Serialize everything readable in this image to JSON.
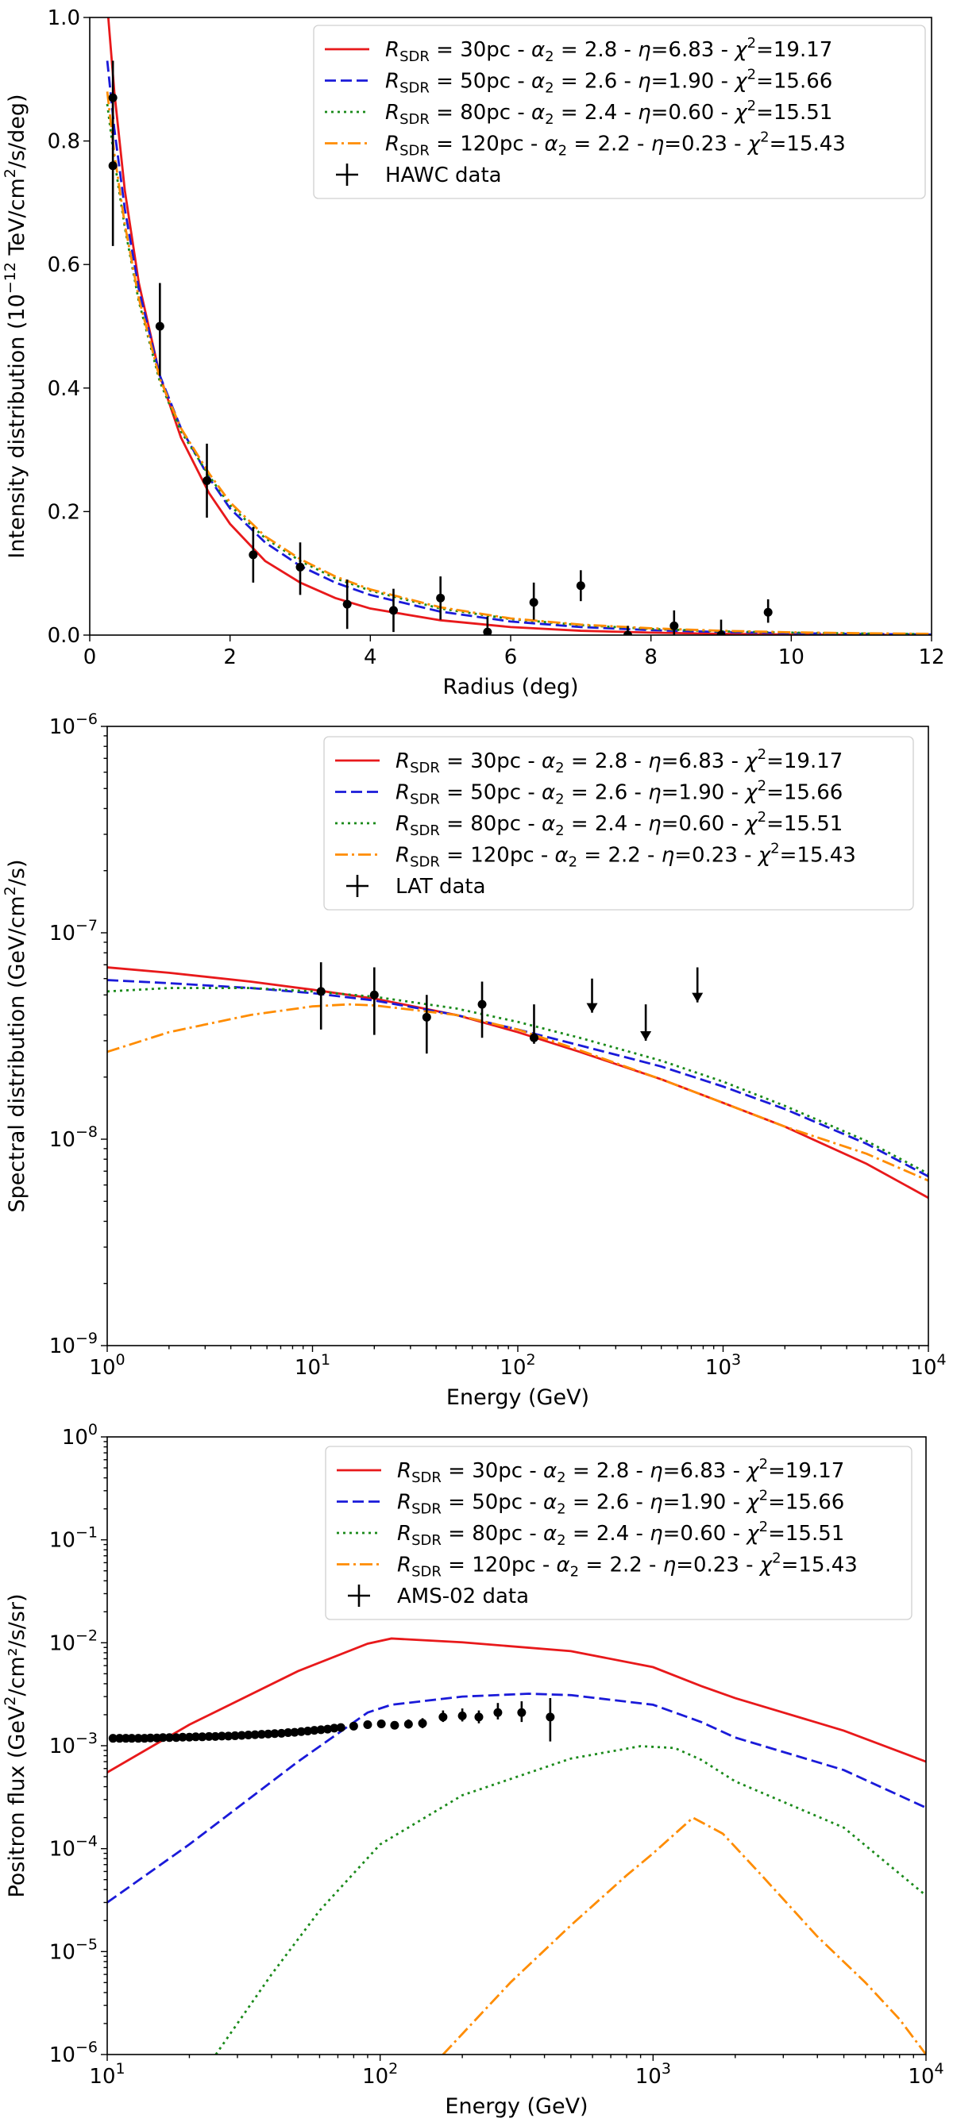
{
  "colors": {
    "red": "#e8191b",
    "blue": "#1a1ad9",
    "green": "#1a8a1a",
    "orange": "#ff8c00",
    "data": "#000000"
  },
  "legend_entries": [
    {
      "r": "30pc",
      "alpha": "2.8",
      "eta": "6.83",
      "chi": "19.17",
      "style": "solid",
      "color": "red"
    },
    {
      "r": "50pc",
      "alpha": "2.6",
      "eta": "1.90",
      "chi": "15.66",
      "style": "dashed",
      "color": "blue"
    },
    {
      "r": "80pc",
      "alpha": "2.4",
      "eta": "0.60",
      "chi": "15.51",
      "style": "dotted",
      "color": "green"
    },
    {
      "r": "120pc",
      "alpha": "2.2",
      "eta": "0.23",
      "chi": "15.43",
      "style": "dashdot",
      "color": "orange"
    }
  ],
  "legend_text": {
    "R": "R",
    "sub": "SDR",
    "eq": " = ",
    "a": "α",
    "two": "2",
    "eta": "η",
    "chi": "χ",
    "sep": " - "
  },
  "chart_data": [
    {
      "type": "line",
      "xscale": "linear",
      "yscale": "linear",
      "xlim": [
        0,
        12
      ],
      "ylim": [
        0,
        1.0
      ],
      "xticks": [
        0,
        2,
        4,
        6,
        8,
        10,
        12
      ],
      "yticks": [
        0.0,
        0.2,
        0.4,
        0.6,
        0.8,
        1.0
      ],
      "xtick_labels": [
        "0",
        "2",
        "4",
        "6",
        "8",
        "10",
        "12"
      ],
      "ytick_labels": [
        "0.0",
        "0.2",
        "0.4",
        "0.6",
        "0.8",
        "1.0"
      ],
      "xlabel": "Radius (deg)",
      "ylabel_main": "Intensity distribution (10",
      "ylabel_exp": "−12",
      "ylabel_rest": " TeV/cm",
      "ylabel_sq": "2",
      "ylabel_tail": "/s/deg",
      "ylabel_end": ")",
      "data_label": "HAWC data",
      "series": [
        {
          "name": "R_SDR = 30pc",
          "color": "red",
          "dash": "solid",
          "x": [
            0.25,
            0.35,
            0.5,
            0.7,
            1.0,
            1.3,
            1.7,
            2.0,
            2.5,
            3.0,
            3.5,
            4.0,
            5.0,
            6.0,
            7.0,
            8.0,
            9.0,
            10.0,
            11.0,
            12.0
          ],
          "y": [
            1.02,
            0.88,
            0.72,
            0.57,
            0.42,
            0.32,
            0.23,
            0.18,
            0.12,
            0.085,
            0.06,
            0.043,
            0.024,
            0.013,
            0.007,
            0.004,
            0.002,
            0.001,
            0.0005,
            0.0003
          ]
        },
        {
          "name": "R_SDR = 50pc",
          "color": "blue",
          "dash": "dashed",
          "x": [
            0.25,
            0.35,
            0.5,
            0.7,
            1.0,
            1.3,
            1.7,
            2.0,
            2.5,
            3.0,
            3.5,
            4.0,
            5.0,
            6.0,
            7.0,
            8.0,
            9.0,
            10.0,
            11.0,
            12.0
          ],
          "y": [
            0.93,
            0.82,
            0.69,
            0.56,
            0.42,
            0.335,
            0.255,
            0.205,
            0.15,
            0.112,
            0.085,
            0.065,
            0.038,
            0.022,
            0.013,
            0.008,
            0.005,
            0.003,
            0.0018,
            0.001
          ]
        },
        {
          "name": "R_SDR = 80pc",
          "color": "green",
          "dash": "dotted",
          "x": [
            0.25,
            0.35,
            0.5,
            0.7,
            1.0,
            1.3,
            1.7,
            2.0,
            2.5,
            3.0,
            3.5,
            4.0,
            5.0,
            6.0,
            7.0,
            8.0,
            9.0,
            10.0,
            11.0,
            12.0
          ],
          "y": [
            0.86,
            0.77,
            0.66,
            0.54,
            0.41,
            0.33,
            0.258,
            0.21,
            0.157,
            0.12,
            0.092,
            0.072,
            0.043,
            0.026,
            0.016,
            0.01,
            0.006,
            0.004,
            0.0025,
            0.0015
          ]
        },
        {
          "name": "R_SDR = 120pc",
          "color": "orange",
          "dash": "dashdot",
          "x": [
            0.25,
            0.35,
            0.5,
            0.7,
            1.0,
            1.3,
            1.7,
            2.0,
            2.5,
            3.0,
            3.5,
            4.0,
            5.0,
            6.0,
            7.0,
            8.0,
            9.0,
            10.0,
            11.0,
            12.0
          ],
          "y": [
            0.88,
            0.78,
            0.665,
            0.545,
            0.415,
            0.335,
            0.262,
            0.215,
            0.16,
            0.123,
            0.095,
            0.074,
            0.045,
            0.027,
            0.017,
            0.011,
            0.007,
            0.0045,
            0.003,
            0.002
          ]
        }
      ],
      "data_points": [
        {
          "x": 0.33,
          "y": 0.87,
          "lo": 0.8,
          "hi": 0.93
        },
        {
          "x": 0.33,
          "y": 0.76,
          "lo": 0.63,
          "hi": 0.87
        },
        {
          "x": 1.0,
          "y": 0.5,
          "lo": 0.42,
          "hi": 0.57
        },
        {
          "x": 1.67,
          "y": 0.25,
          "lo": 0.19,
          "hi": 0.31
        },
        {
          "x": 2.33,
          "y": 0.13,
          "lo": 0.085,
          "hi": 0.175
        },
        {
          "x": 3.0,
          "y": 0.11,
          "lo": 0.065,
          "hi": 0.15
        },
        {
          "x": 3.67,
          "y": 0.05,
          "lo": 0.01,
          "hi": 0.09
        },
        {
          "x": 4.33,
          "y": 0.04,
          "lo": 0.005,
          "hi": 0.075
        },
        {
          "x": 5.0,
          "y": 0.06,
          "lo": 0.025,
          "hi": 0.095
        },
        {
          "x": 5.67,
          "y": 0.005,
          "lo": 0.0,
          "hi": 0.03
        },
        {
          "x": 6.33,
          "y": 0.053,
          "lo": 0.025,
          "hi": 0.085
        },
        {
          "x": 7.0,
          "y": 0.08,
          "lo": 0.055,
          "hi": 0.105
        },
        {
          "x": 7.67,
          "y": 0.0,
          "lo": 0.0,
          "hi": 0.015
        },
        {
          "x": 8.33,
          "y": 0.015,
          "lo": 0.0,
          "hi": 0.04
        },
        {
          "x": 9.0,
          "y": 0.0,
          "lo": 0.0,
          "hi": 0.025
        },
        {
          "x": 9.67,
          "y": 0.037,
          "lo": 0.02,
          "hi": 0.058
        }
      ],
      "upper_limits": []
    },
    {
      "type": "line",
      "xscale": "log",
      "yscale": "log",
      "xlim": [
        1,
        10000
      ],
      "ylim": [
        1e-09,
        1e-06
      ],
      "xticks": [
        1,
        10,
        100,
        1000,
        10000
      ],
      "yticks": [
        1e-09,
        1e-08,
        1e-07,
        1e-06
      ],
      "xtick_labels": [
        "10^0",
        "10^1",
        "10^2",
        "10^3",
        "10^4"
      ],
      "ytick_labels": [
        "10^-9",
        "10^-8",
        "10^-7",
        "10^-6"
      ],
      "xlabel": "Energy (GeV)",
      "ylabel_main": "Spectral distribution (GeV/cm",
      "ylabel_exp": "",
      "ylabel_rest": "",
      "ylabel_sq": "2",
      "ylabel_tail": "/s",
      "ylabel_end": ")",
      "data_label": "LAT data",
      "series": [
        {
          "name": "R_SDR = 30pc",
          "color": "red",
          "dash": "solid",
          "x": [
            1,
            2,
            5,
            10,
            20,
            50,
            100,
            200,
            500,
            1000,
            2000,
            5000,
            10000
          ],
          "y": [
            6.8e-08,
            6.4e-08,
            5.8e-08,
            5.3e-08,
            4.8e-08,
            4e-08,
            3.3e-08,
            2.65e-08,
            1.95e-08,
            1.5e-08,
            1.15e-08,
            7.6e-09,
            5.2e-09
          ]
        },
        {
          "name": "R_SDR = 50pc",
          "color": "blue",
          "dash": "dashed",
          "x": [
            1,
            2,
            5,
            10,
            20,
            50,
            100,
            200,
            500,
            1000,
            2000,
            5000,
            10000
          ],
          "y": [
            5.9e-08,
            5.7e-08,
            5.4e-08,
            5.1e-08,
            4.7e-08,
            4e-08,
            3.4e-08,
            2.85e-08,
            2.25e-08,
            1.8e-08,
            1.4e-08,
            9.5e-09,
            6.6e-09
          ]
        },
        {
          "name": "R_SDR = 80pc",
          "color": "green",
          "dash": "dotted",
          "x": [
            1,
            2,
            5,
            10,
            20,
            50,
            100,
            200,
            500,
            1000,
            2000,
            5000,
            10000
          ],
          "y": [
            5.2e-08,
            5.4e-08,
            5.4e-08,
            5.2e-08,
            4.9e-08,
            4.3e-08,
            3.7e-08,
            3.1e-08,
            2.4e-08,
            1.9e-08,
            1.45e-08,
            9.8e-09,
            6.8e-09
          ]
        },
        {
          "name": "R_SDR = 120pc",
          "color": "orange",
          "dash": "dashdot",
          "x": [
            1,
            2,
            5,
            10,
            15,
            20,
            50,
            100,
            200,
            500,
            1000,
            2000,
            5000,
            10000
          ],
          "y": [
            2.65e-08,
            3.3e-08,
            4e-08,
            4.4e-08,
            4.5e-08,
            4.45e-08,
            4e-08,
            3.4e-08,
            2.7e-08,
            1.95e-08,
            1.5e-08,
            1.15e-08,
            8.5e-09,
            6.3e-09
          ]
        }
      ],
      "data_points": [
        {
          "x": 11,
          "y": 5.2e-08,
          "lo": 3.4e-08,
          "hi": 7.2e-08
        },
        {
          "x": 20,
          "y": 5e-08,
          "lo": 3.2e-08,
          "hi": 6.8e-08
        },
        {
          "x": 36,
          "y": 3.9e-08,
          "lo": 2.6e-08,
          "hi": 5e-08
        },
        {
          "x": 67,
          "y": 4.5e-08,
          "lo": 3.1e-08,
          "hi": 5.8e-08
        },
        {
          "x": 120,
          "y": 3.1e-08,
          "lo": 2.9e-08,
          "hi": 4.5e-08
        }
      ],
      "upper_limits": [
        {
          "x": 230,
          "y": 6e-08,
          "to": 4.1e-08
        },
        {
          "x": 420,
          "y": 4.5e-08,
          "to": 3e-08
        },
        {
          "x": 750,
          "y": 6.8e-08,
          "to": 4.6e-08
        }
      ]
    },
    {
      "type": "line",
      "xscale": "log",
      "yscale": "log",
      "xlim": [
        10,
        10000
      ],
      "ylim": [
        1e-06,
        1
      ],
      "xticks": [
        10,
        100,
        1000,
        10000
      ],
      "yticks": [
        1e-06,
        1e-05,
        0.0001,
        0.001,
        0.01,
        0.1,
        1
      ],
      "xtick_labels": [
        "10^1",
        "10^2",
        "10^3",
        "10^4"
      ],
      "ytick_labels": [
        "10^-6",
        "10^-5",
        "10^-4",
        "10^-3",
        "10^-2",
        "10^-1",
        "10^0"
      ],
      "xlabel": "Energy (GeV)",
      "ylabel_main": "Positron flux (GeV",
      "ylabel_exp": "",
      "ylabel_rest": "",
      "ylabel_sq": "2",
      "ylabel_tail": "/cm²/s/sr",
      "ylabel_end": ")",
      "data_label": "AMS-02 data",
      "series": [
        {
          "name": "R_SDR = 30pc",
          "color": "red",
          "dash": "solid",
          "x": [
            10,
            20,
            50,
            90,
            110,
            200,
            500,
            1000,
            1500,
            2000,
            5000,
            10000
          ],
          "y": [
            0.00055,
            0.0016,
            0.0053,
            0.0098,
            0.011,
            0.0101,
            0.0083,
            0.0058,
            0.0038,
            0.0029,
            0.0014,
            0.0007
          ]
        },
        {
          "name": "R_SDR = 50pc",
          "color": "blue",
          "dash": "dashed",
          "x": [
            10,
            20,
            50,
            90,
            110,
            200,
            350,
            500,
            1000,
            1500,
            2000,
            5000,
            10000
          ],
          "y": [
            3e-05,
            0.00011,
            0.0007,
            0.0021,
            0.0025,
            0.003,
            0.0032,
            0.0031,
            0.0025,
            0.0017,
            0.0012,
            0.00058,
            0.00025
          ]
        },
        {
          "name": "R_SDR = 80pc",
          "color": "green",
          "dash": "dotted",
          "x": [
            25,
            40,
            60,
            100,
            200,
            500,
            900,
            1200,
            1500,
            2000,
            5000,
            10000
          ],
          "y": [
            1e-06,
            6e-06,
            2.5e-05,
            0.00011,
            0.00033,
            0.00075,
            0.00099,
            0.00095,
            0.00073,
            0.00045,
            0.00016,
            3.5e-05
          ]
        },
        {
          "name": "R_SDR = 120pc",
          "color": "orange",
          "dash": "dashdot",
          "x": [
            170,
            300,
            500,
            800,
            1000,
            1400,
            1800,
            2500,
            4000,
            6000,
            8000,
            10000
          ],
          "y": [
            1e-06,
            5e-06,
            1.8e-05,
            5.5e-05,
            9e-05,
            0.0002,
            0.00014,
            5.5e-05,
            1.4e-05,
            5e-06,
            2.2e-06,
            1e-06
          ]
        }
      ],
      "data_points": [
        {
          "x": 10.5,
          "y": 0.00118
        },
        {
          "x": 11.1,
          "y": 0.00118
        },
        {
          "x": 11.7,
          "y": 0.00118
        },
        {
          "x": 12.3,
          "y": 0.00118
        },
        {
          "x": 13.0,
          "y": 0.00118
        },
        {
          "x": 13.7,
          "y": 0.00118
        },
        {
          "x": 14.4,
          "y": 0.00119
        },
        {
          "x": 15.2,
          "y": 0.00119
        },
        {
          "x": 16.0,
          "y": 0.0012
        },
        {
          "x": 16.9,
          "y": 0.0012
        },
        {
          "x": 17.9,
          "y": 0.0012
        },
        {
          "x": 18.9,
          "y": 0.00121
        },
        {
          "x": 20.0,
          "y": 0.00121
        },
        {
          "x": 21.1,
          "y": 0.00122
        },
        {
          "x": 22.3,
          "y": 0.00122
        },
        {
          "x": 23.6,
          "y": 0.00123
        },
        {
          "x": 24.9,
          "y": 0.00123
        },
        {
          "x": 26.3,
          "y": 0.00124
        },
        {
          "x": 27.8,
          "y": 0.00124
        },
        {
          "x": 29.4,
          "y": 0.00125
        },
        {
          "x": 31.1,
          "y": 0.00126
        },
        {
          "x": 32.9,
          "y": 0.00127
        },
        {
          "x": 34.8,
          "y": 0.00128
        },
        {
          "x": 36.8,
          "y": 0.00129
        },
        {
          "x": 38.9,
          "y": 0.0013
        },
        {
          "x": 41.1,
          "y": 0.00131
        },
        {
          "x": 43.5,
          "y": 0.00132
        },
        {
          "x": 46.0,
          "y": 0.00134
        },
        {
          "x": 48.6,
          "y": 0.00135
        },
        {
          "x": 51.4,
          "y": 0.00137
        },
        {
          "x": 54.3,
          "y": 0.00139
        },
        {
          "x": 57.4,
          "y": 0.00141
        },
        {
          "x": 60.7,
          "y": 0.00143
        },
        {
          "x": 64.2,
          "y": 0.00145
        },
        {
          "x": 67.9,
          "y": 0.00148
        },
        {
          "x": 71.8,
          "y": 0.0015
        },
        {
          "x": 80.0,
          "y": 0.00155
        },
        {
          "x": 90.0,
          "y": 0.0016
        },
        {
          "x": 101,
          "y": 0.00163,
          "lo": 0.0015,
          "hi": 0.00178
        },
        {
          "x": 113,
          "y": 0.00158,
          "lo": 0.00145,
          "hi": 0.00172
        },
        {
          "x": 127,
          "y": 0.00162,
          "lo": 0.00147,
          "hi": 0.0018
        },
        {
          "x": 143,
          "y": 0.00165,
          "lo": 0.00148,
          "hi": 0.00185
        },
        {
          "x": 170,
          "y": 0.0019,
          "lo": 0.0017,
          "hi": 0.0022
        },
        {
          "x": 200,
          "y": 0.00195,
          "lo": 0.00172,
          "hi": 0.0023
        },
        {
          "x": 230,
          "y": 0.0019,
          "lo": 0.00165,
          "hi": 0.0022
        },
        {
          "x": 270,
          "y": 0.0021,
          "lo": 0.0018,
          "hi": 0.0026
        },
        {
          "x": 330,
          "y": 0.0021,
          "lo": 0.0017,
          "hi": 0.0027
        },
        {
          "x": 420,
          "y": 0.0019,
          "lo": 0.0011,
          "hi": 0.0029
        }
      ],
      "upper_limits": []
    }
  ]
}
